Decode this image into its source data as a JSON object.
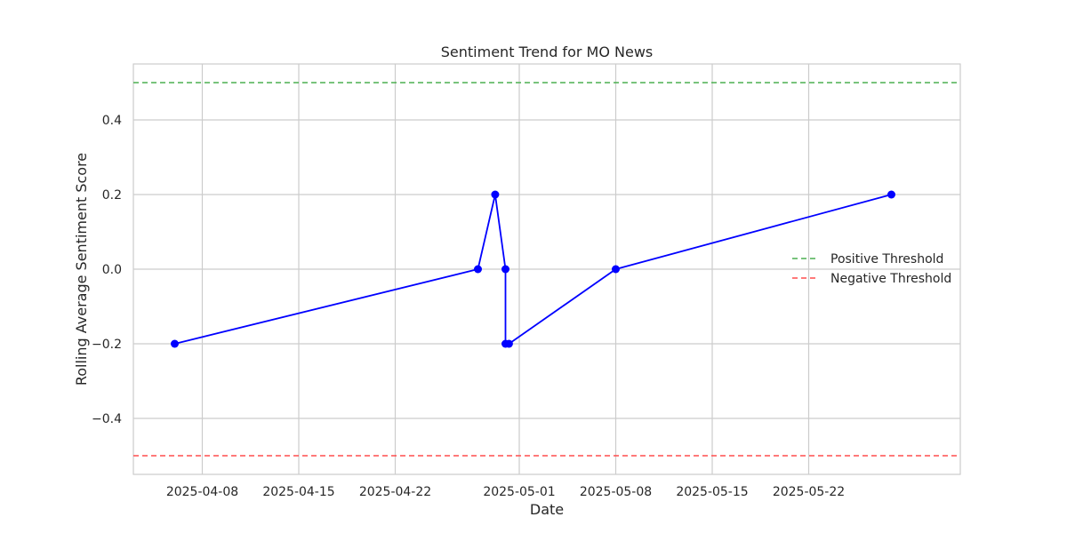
{
  "chart_data": {
    "type": "line",
    "title": "Sentiment Trend for MO News",
    "xlabel": "Date",
    "ylabel": "Rolling Average Sentiment Score",
    "x_axis": {
      "kind": "date",
      "range": [
        "2025-04-03",
        "2025-06-02"
      ],
      "ticks": [
        "2025-04-08",
        "2025-04-15",
        "2025-04-22",
        "2025-05-01",
        "2025-05-08",
        "2025-05-15",
        "2025-05-22"
      ]
    },
    "y_axis": {
      "range": [
        -0.55,
        0.55
      ],
      "ticks": [
        -0.4,
        -0.2,
        0.0,
        0.2,
        0.4
      ],
      "tick_labels": [
        "−0.4",
        "−0.2",
        "0.0",
        "0.2",
        "0.4"
      ]
    },
    "grid": true,
    "legend_position": "center-right",
    "series": [
      {
        "color": "#0000ff",
        "marker": "circle",
        "points": [
          {
            "x": "2025-04-06",
            "y": -0.2
          },
          {
            "x": "2025-04-28",
            "y": 0.0
          },
          {
            "x": "2025-04-29 06:00",
            "y": 0.2
          },
          {
            "x": "2025-04-30 00:00",
            "y": 0.0
          },
          {
            "x": "2025-04-30 00:00",
            "y": -0.2
          },
          {
            "x": "2025-04-30 06:00",
            "y": -0.2
          },
          {
            "x": "2025-05-08",
            "y": 0.0
          },
          {
            "x": "2025-05-28",
            "y": 0.2
          }
        ]
      }
    ],
    "thresholds": [
      {
        "name": "Positive Threshold",
        "y": 0.5,
        "color": "#4caf50",
        "style": "dashed"
      },
      {
        "name": "Negative Threshold",
        "y": -0.5,
        "color": "#ff4d4d",
        "style": "dashed"
      }
    ]
  }
}
